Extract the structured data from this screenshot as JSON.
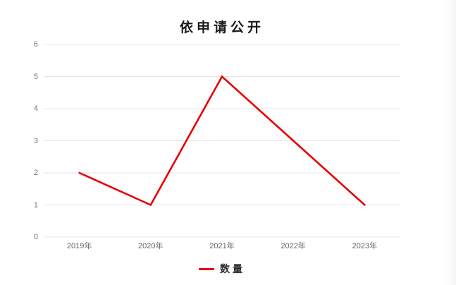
{
  "title": "依申请公开",
  "legend": {
    "series_label": "数量"
  },
  "colors": {
    "line": "#e80000",
    "grid": "#e7e7e7",
    "y_axis_text": "#737373",
    "x_axis_text": "#666666",
    "title_text": "#1a1a1a"
  },
  "chart_data": {
    "type": "line",
    "title": "依申请公开",
    "categories": [
      "2019年",
      "2020年",
      "2021年",
      "2022年",
      "2023年"
    ],
    "series": [
      {
        "name": "数量",
        "values": [
          2,
          1,
          5,
          3,
          1
        ],
        "color": "#e80000"
      }
    ],
    "xlabel": "",
    "ylabel": "",
    "ylim": [
      0,
      6
    ],
    "yticks": [
      0,
      1,
      2,
      3,
      4,
      5,
      6
    ],
    "grid": true,
    "grid_orientation": "horizontal",
    "legend_position": "bottom",
    "markers": false
  }
}
